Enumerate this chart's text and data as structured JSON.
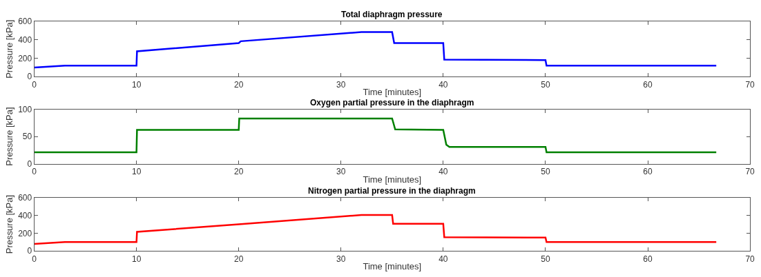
{
  "chart_data": [
    {
      "type": "line",
      "title": "Total diaphragm pressure",
      "xlabel": "Time [minutes]",
      "ylabel": "Pressure [kPa]",
      "xlim": [
        0,
        70
      ],
      "xticks": [
        0,
        10,
        20,
        30,
        40,
        50,
        60,
        70
      ],
      "ylim": [
        0,
        600
      ],
      "yticks": [
        0,
        200,
        400,
        600
      ],
      "marker": "none",
      "line_style": "solid",
      "series": [
        {
          "color": "#0000ff",
          "x": [
            0,
            3,
            10,
            10.05,
            20,
            20.2,
            32,
            35,
            35.2,
            40,
            40.1,
            50,
            50.1,
            66.7
          ],
          "values": [
            100,
            120,
            120,
            275,
            365,
            385,
            485,
            485,
            365,
            365,
            185,
            180,
            120,
            120
          ]
        }
      ]
    },
    {
      "type": "line",
      "title": "Oxygen partial pressure in the diaphragm",
      "xlabel": "Time [minutes]",
      "ylabel": "Pressure [kPa]",
      "xlim": [
        0,
        70
      ],
      "xticks": [
        0,
        10,
        20,
        30,
        40,
        50,
        60,
        70
      ],
      "ylim": [
        0,
        100
      ],
      "yticks": [
        0,
        50,
        100
      ],
      "marker": "none",
      "line_style": "solid",
      "series": [
        {
          "color": "#008000",
          "x": [
            0,
            10,
            10.05,
            20,
            20.05,
            35,
            35.3,
            40,
            40.3,
            40.6,
            50,
            50.1,
            66.7
          ],
          "values": [
            21,
            21,
            62,
            62,
            83,
            83,
            63,
            62,
            35,
            31,
            31,
            21,
            21
          ]
        }
      ]
    },
    {
      "type": "line",
      "title": "Nitrogen partial pressure in the diaphragm",
      "xlabel": "Time [minutes]",
      "ylabel": "Pressure [kPa]",
      "xlim": [
        0,
        70
      ],
      "xticks": [
        0,
        10,
        20,
        30,
        40,
        50,
        60,
        70
      ],
      "ylim": [
        0,
        600
      ],
      "yticks": [
        0,
        200,
        400,
        600
      ],
      "marker": "none",
      "line_style": "solid",
      "series": [
        {
          "color": "#ff0000",
          "x": [
            0,
            3,
            10,
            10.05,
            20,
            32,
            35,
            35.1,
            40,
            40.1,
            50,
            50.1,
            66.7
          ],
          "values": [
            79,
            100,
            100,
            215,
            300,
            405,
            405,
            305,
            305,
            155,
            150,
            100,
            100
          ]
        }
      ]
    }
  ]
}
